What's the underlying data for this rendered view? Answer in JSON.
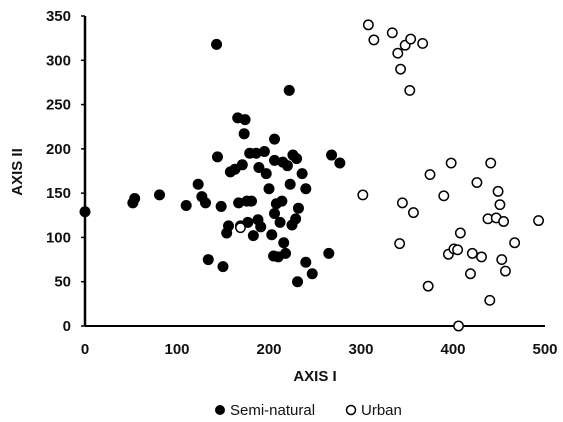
{
  "chart_data": {
    "type": "scatter",
    "xlabel": "AXIS I",
    "ylabel": "AXIS II",
    "xlim": [
      0,
      500
    ],
    "ylim": [
      0,
      350
    ],
    "xticks": [
      "0",
      "100",
      "200",
      "300",
      "400",
      "500"
    ],
    "yticks": [
      "0",
      "50",
      "100",
      "150",
      "200",
      "250",
      "300",
      "350"
    ],
    "grid": false,
    "legend_position": "bottom-center",
    "series": [
      {
        "name": "Semi-natural",
        "marker": "filled-circle",
        "color": "#000000",
        "points": [
          [
            0,
            129
          ],
          [
            52,
            139
          ],
          [
            54,
            144
          ],
          [
            81,
            148
          ],
          [
            110,
            136
          ],
          [
            123,
            160
          ],
          [
            127,
            146
          ],
          [
            131,
            139
          ],
          [
            134,
            75
          ],
          [
            143,
            318
          ],
          [
            144,
            191
          ],
          [
            148,
            135
          ],
          [
            150,
            67
          ],
          [
            154,
            105
          ],
          [
            156,
            113
          ],
          [
            158,
            174
          ],
          [
            163,
            177
          ],
          [
            166,
            235
          ],
          [
            167,
            139
          ],
          [
            169,
            113
          ],
          [
            171,
            182
          ],
          [
            173,
            217
          ],
          [
            174,
            233
          ],
          [
            176,
            141
          ],
          [
            177,
            117
          ],
          [
            179,
            195
          ],
          [
            181,
            141
          ],
          [
            183,
            102
          ],
          [
            186,
            195
          ],
          [
            188,
            120
          ],
          [
            189,
            179
          ],
          [
            191,
            112
          ],
          [
            195,
            197
          ],
          [
            197,
            172
          ],
          [
            200,
            155
          ],
          [
            203,
            103
          ],
          [
            205,
            79
          ],
          [
            206,
            211
          ],
          [
            206,
            127
          ],
          [
            206,
            187
          ],
          [
            208,
            138
          ],
          [
            210,
            78
          ],
          [
            212,
            117
          ],
          [
            214,
            141
          ],
          [
            215,
            185
          ],
          [
            216,
            94
          ],
          [
            218,
            82
          ],
          [
            220,
            181
          ],
          [
            222,
            266
          ],
          [
            223,
            160
          ],
          [
            225,
            114
          ],
          [
            226,
            193
          ],
          [
            229,
            121
          ],
          [
            230,
            189
          ],
          [
            231,
            50
          ],
          [
            232,
            133
          ],
          [
            236,
            172
          ],
          [
            240,
            72
          ],
          [
            240,
            155
          ],
          [
            247,
            59
          ],
          [
            265,
            82
          ],
          [
            268,
            193
          ],
          [
            277,
            184
          ]
        ]
      },
      {
        "name": "Urban",
        "marker": "open-circle",
        "color": "#000000",
        "points": [
          [
            169,
            111
          ],
          [
            302,
            148
          ],
          [
            308,
            340
          ],
          [
            314,
            323
          ],
          [
            334,
            331
          ],
          [
            340,
            308
          ],
          [
            342,
            93
          ],
          [
            343,
            290
          ],
          [
            345,
            139
          ],
          [
            348,
            317
          ],
          [
            353,
            266
          ],
          [
            354,
            324
          ],
          [
            357,
            128
          ],
          [
            367,
            319
          ],
          [
            373,
            45
          ],
          [
            375,
            171
          ],
          [
            390,
            147
          ],
          [
            395,
            81
          ],
          [
            398,
            184
          ],
          [
            401,
            87
          ],
          [
            405,
            86
          ],
          [
            408,
            105
          ],
          [
            419,
            59
          ],
          [
            421,
            82
          ],
          [
            426,
            162
          ],
          [
            431,
            78
          ],
          [
            438,
            121
          ],
          [
            440,
            29
          ],
          [
            441,
            184
          ],
          [
            447,
            122
          ],
          [
            449,
            152
          ],
          [
            451,
            137
          ],
          [
            453,
            75
          ],
          [
            455,
            118
          ],
          [
            457,
            62
          ],
          [
            467,
            94
          ],
          [
            493,
            119
          ],
          [
            406,
            0
          ]
        ]
      }
    ]
  }
}
